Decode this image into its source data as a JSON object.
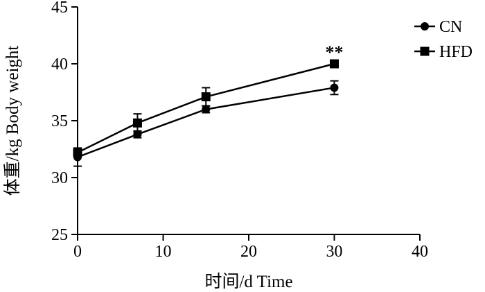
{
  "chart_data": {
    "type": "line",
    "title": "",
    "xlabel": "时间/d  Time",
    "ylabel": "体重/kg   Body weight",
    "xlim": [
      0,
      40
    ],
    "ylim": [
      25,
      45
    ],
    "xticks": [
      0,
      10,
      20,
      30,
      40
    ],
    "yticks": [
      25,
      30,
      35,
      40,
      45
    ],
    "grid": false,
    "legend_position": "top-right",
    "series": [
      {
        "name": "CN",
        "marker": "circle",
        "color": "#000000",
        "x": [
          0,
          7,
          15,
          30
        ],
        "y": [
          31.8,
          33.8,
          36.0,
          37.9
        ],
        "err": [
          0.8,
          0.3,
          0.3,
          0.6
        ]
      },
      {
        "name": "HFD",
        "marker": "square",
        "color": "#000000",
        "x": [
          0,
          7,
          15,
          30
        ],
        "y": [
          32.2,
          34.8,
          37.1,
          40.0
        ],
        "err": [
          0.3,
          0.8,
          0.8,
          0.3
        ]
      }
    ],
    "annotations": [
      {
        "text": "**",
        "x": 30,
        "y": 40.0
      }
    ]
  }
}
